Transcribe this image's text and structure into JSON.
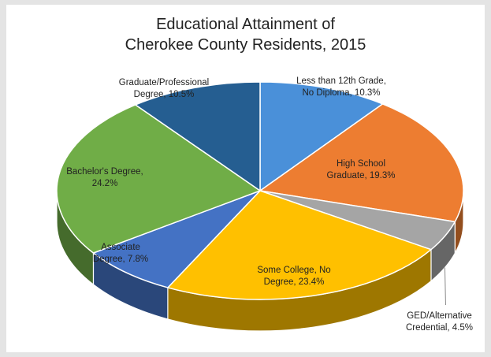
{
  "chart_data": {
    "type": "pie",
    "style": "3d",
    "title_lines": [
      "Educational Attainment of",
      "Cherokee County Residents, 2015"
    ],
    "slices": [
      {
        "label": "Less than 12th Grade, No Diploma",
        "value": 10.3,
        "display": "Less than 12th Grade,|No Diploma, 10.3%",
        "color": "#4a90d9"
      },
      {
        "label": "High School Graduate",
        "value": 19.3,
        "display": "High School|Graduate, 19.3%",
        "color": "#ed7d31"
      },
      {
        "label": "GED/Alternative Credential",
        "value": 4.5,
        "display": "GED/Alternative|Credential, 4.5%",
        "color": "#a5a5a5"
      },
      {
        "label": "Some College, No Degree",
        "value": 23.4,
        "display": "Some College, No|Degree, 23.4%",
        "color": "#ffc000"
      },
      {
        "label": "Associate Degree",
        "value": 7.8,
        "display": "Associate|Degree, 7.8%",
        "color": "#4472c4"
      },
      {
        "label": "Bachelor's Degree",
        "value": 24.2,
        "display": "Bachelor's Degree,|24.2%",
        "color": "#70ad47"
      },
      {
        "label": "Graduate/Professional Degree",
        "value": 10.5,
        "display": "Graduate/Professional|Degree, 10.5%",
        "color": "#255e91"
      }
    ]
  }
}
